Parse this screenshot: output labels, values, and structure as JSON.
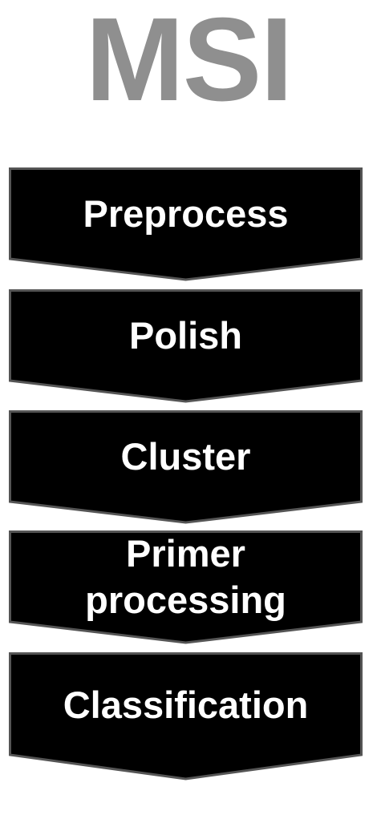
{
  "title": "MSI",
  "colors": {
    "title": "#8f8f8f",
    "box_fill": "#000000",
    "box_stroke": "#555555",
    "label": "#ffffff"
  },
  "steps": [
    {
      "label": "Preprocess"
    },
    {
      "label": "Polish"
    },
    {
      "label": "Cluster"
    },
    {
      "label": "Primer\nprocessing"
    },
    {
      "label": "Classification"
    }
  ]
}
